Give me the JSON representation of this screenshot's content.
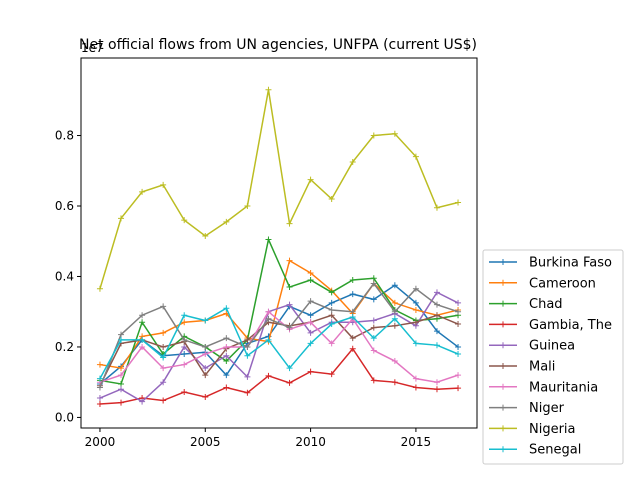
{
  "chart_data": {
    "type": "line",
    "title": "Net official flows from UN agencies, UNFPA (current US$)",
    "xlabel": "",
    "ylabel": "",
    "y_scale_label": "1e7",
    "x": [
      2000,
      2001,
      2002,
      2003,
      2004,
      2005,
      2006,
      2007,
      2008,
      2009,
      2010,
      2011,
      2012,
      2013,
      2014,
      2015,
      2016,
      2017
    ],
    "xlim": [
      1999.1,
      2017.9
    ],
    "ylim": [
      -0.03,
      1.02
    ],
    "x_ticks": [
      2000,
      2005,
      2010,
      2015
    ],
    "y_ticks": [
      0.0,
      0.2,
      0.4,
      0.6,
      0.8
    ],
    "y_tick_labels": [
      "0.0",
      "0.2",
      "0.4",
      "0.6",
      "0.8"
    ],
    "legend_position": "lower-right",
    "grid": false,
    "series": [
      {
        "name": "Burkina Faso",
        "color": "#1f77b4",
        "values": [
          0.095,
          0.145,
          0.22,
          0.175,
          0.18,
          0.185,
          0.12,
          0.21,
          0.23,
          0.315,
          0.29,
          0.325,
          0.35,
          0.335,
          0.375,
          0.325,
          0.245,
          0.2
        ]
      },
      {
        "name": "Cameroon",
        "color": "#ff7f0e",
        "values": [
          0.15,
          0.14,
          0.23,
          0.24,
          0.27,
          0.275,
          0.295,
          0.225,
          0.215,
          0.445,
          0.41,
          0.36,
          0.295,
          0.38,
          0.325,
          0.305,
          0.29,
          0.305
        ]
      },
      {
        "name": "Chad",
        "color": "#2ca02c",
        "values": [
          0.105,
          0.095,
          0.27,
          0.18,
          0.23,
          0.2,
          0.16,
          0.22,
          0.505,
          0.37,
          0.39,
          0.355,
          0.39,
          0.395,
          0.305,
          0.275,
          0.28,
          0.29
        ]
      },
      {
        "name": "Gambia, The",
        "color": "#d62728",
        "values": [
          0.038,
          0.042,
          0.055,
          0.048,
          0.072,
          0.058,
          0.085,
          0.07,
          0.118,
          0.098,
          0.13,
          0.123,
          0.195,
          0.105,
          0.1,
          0.085,
          0.08,
          0.083
        ]
      },
      {
        "name": "Guinea",
        "color": "#9467bd",
        "values": [
          0.055,
          0.08,
          0.045,
          0.1,
          0.2,
          0.14,
          0.175,
          0.115,
          0.3,
          0.32,
          0.24,
          0.27,
          0.27,
          0.275,
          0.295,
          0.26,
          0.355,
          0.325
        ]
      },
      {
        "name": "Mali",
        "color": "#8c564b",
        "values": [
          0.09,
          0.21,
          0.22,
          0.2,
          0.215,
          0.12,
          0.195,
          0.22,
          0.27,
          0.26,
          0.27,
          0.29,
          0.225,
          0.255,
          0.26,
          0.27,
          0.29,
          0.265
        ]
      },
      {
        "name": "Mauritania",
        "color": "#e377c2",
        "values": [
          0.1,
          0.12,
          0.2,
          0.14,
          0.15,
          0.18,
          0.2,
          0.2,
          0.3,
          0.25,
          0.27,
          0.21,
          0.28,
          0.19,
          0.16,
          0.11,
          0.1,
          0.12
        ]
      },
      {
        "name": "Niger",
        "color": "#7f7f7f",
        "values": [
          0.085,
          0.235,
          0.29,
          0.315,
          0.22,
          0.2,
          0.225,
          0.2,
          0.28,
          0.255,
          0.33,
          0.305,
          0.3,
          0.38,
          0.3,
          0.365,
          0.32,
          0.3
        ]
      },
      {
        "name": "Nigeria",
        "color": "#bcbd22",
        "values": [
          0.365,
          0.565,
          0.64,
          0.66,
          0.56,
          0.515,
          0.555,
          0.6,
          0.93,
          0.55,
          0.675,
          0.62,
          0.725,
          0.8,
          0.805,
          0.74,
          0.595,
          0.61
        ]
      },
      {
        "name": "Senegal",
        "color": "#17becf",
        "values": [
          0.11,
          0.22,
          0.22,
          0.17,
          0.29,
          0.275,
          0.31,
          0.175,
          0.22,
          0.14,
          0.21,
          0.265,
          0.285,
          0.225,
          0.28,
          0.21,
          0.205,
          0.18
        ]
      }
    ]
  }
}
